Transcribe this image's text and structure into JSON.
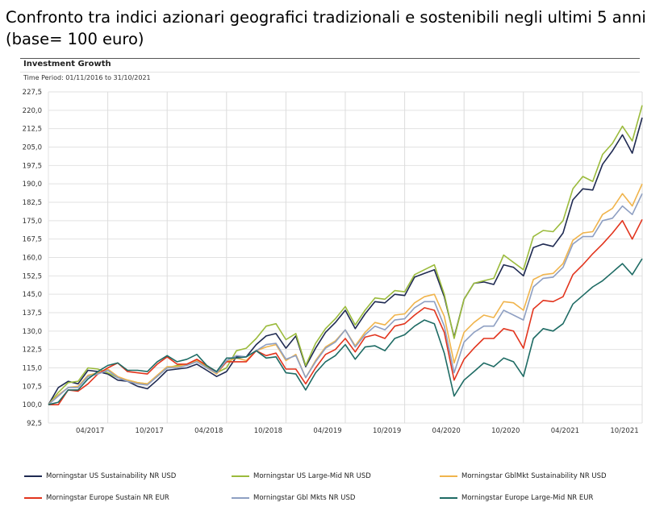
{
  "heading": "Confronto tra indici azionari geografici tradizionali e sostenibili negli ultimi 5 anni (base= 100 euro)",
  "chart_data": {
    "type": "line",
    "title": "Investment Growth",
    "subtitle": "Time Period: 01/11/2016 to 31/10/2021",
    "xlabel": "",
    "ylabel": "",
    "ylim": [
      92.5,
      227.5
    ],
    "y_ticks": [
      92.5,
      100,
      107.5,
      115,
      122.5,
      130,
      137.5,
      145,
      152.5,
      160,
      167.5,
      175,
      182.5,
      190,
      197.5,
      205,
      212.5,
      220,
      227.5
    ],
    "y_tick_labels": [
      "92,5",
      "100,0",
      "107,5",
      "115,0",
      "122,5",
      "130,0",
      "137,5",
      "145,0",
      "152,5",
      "160,0",
      "167,5",
      "175,0",
      "182,5",
      "190,0",
      "197,5",
      "205,0",
      "212,5",
      "220,0",
      "227,5"
    ],
    "x_start": "10/2016",
    "x_step": "monthly",
    "x_tick_index": [
      6,
      12,
      18,
      24,
      30,
      36,
      42,
      48,
      54,
      60
    ],
    "x_tick_labels": [
      "04/2017",
      "10/2017",
      "04/2018",
      "10/2018",
      "04/2019",
      "10/2019",
      "04/2020",
      "10/2020",
      "04/2021",
      "10/2021"
    ],
    "grid": true,
    "legend_position": "bottom",
    "series": [
      {
        "name": "Morningstar US Sustainability NR USD",
        "color": "#1f2a52",
        "values": [
          100,
          107,
          109.5,
          108.5,
          114,
          113.5,
          112.5,
          110,
          109.5,
          107.5,
          106.5,
          110,
          114,
          114.5,
          115,
          116.5,
          114,
          111.5,
          113.5,
          119.5,
          119.5,
          124.5,
          128,
          129,
          123,
          128,
          115.5,
          123,
          129.5,
          133.5,
          138.5,
          131,
          137,
          142,
          141.5,
          145,
          144.5,
          152,
          153.5,
          155,
          144,
          127.5,
          143,
          149.5,
          150,
          149,
          157,
          156,
          152.5,
          164,
          165.5,
          164.5,
          170,
          183.5,
          188,
          187.5,
          198,
          203.5,
          210,
          202.5,
          217
        ]
      },
      {
        "name": "Morningstar US Large-Mid NR USD",
        "color": "#9bbb3c",
        "values": [
          100,
          105,
          109,
          109.5,
          115,
          114.5,
          113,
          111,
          110,
          109,
          108.5,
          111.5,
          115,
          116,
          116.5,
          118,
          115.5,
          113,
          115,
          122,
          123,
          127,
          132,
          133,
          126.5,
          129,
          116,
          125,
          131,
          135,
          140,
          132.5,
          138.5,
          143.5,
          143,
          146.5,
          146,
          153,
          155,
          157,
          145,
          127,
          143,
          149.5,
          150.5,
          151.5,
          161,
          158,
          155,
          168.5,
          171,
          170.5,
          175,
          188,
          193,
          191,
          202,
          206.5,
          213.5,
          207.5,
          222
        ]
      },
      {
        "name": "Morningstar GblMkt Sustainability NR USD",
        "color": "#f0b44c",
        "values": [
          100,
          104,
          107,
          107.5,
          112,
          113,
          114.5,
          111.5,
          110,
          109,
          108.5,
          112,
          115.5,
          115.5,
          116.5,
          118,
          115,
          112.5,
          117.5,
          119,
          118,
          122,
          123.5,
          124.5,
          118,
          120.5,
          111,
          118,
          123.5,
          126,
          130.5,
          124,
          129.5,
          133.5,
          132.5,
          136.5,
          137,
          141.5,
          144,
          145,
          136,
          117,
          129.5,
          133.5,
          136.5,
          135.5,
          142,
          141.5,
          138.5,
          151,
          153,
          153.5,
          157.5,
          167,
          170,
          170.5,
          177.5,
          180,
          186,
          181,
          190
        ]
      },
      {
        "name": "Morningstar Europe Sustain NR EUR",
        "color": "#e2341d",
        "values": [
          100,
          100,
          106,
          105.5,
          108.5,
          112.5,
          115,
          117,
          113.5,
          113,
          112.5,
          116.5,
          119.5,
          116.5,
          116.5,
          118.5,
          116,
          113,
          117.5,
          117.5,
          117.5,
          122,
          120,
          121,
          114.5,
          114.5,
          108.5,
          115,
          120.5,
          122.5,
          127,
          121.5,
          127.5,
          128.5,
          127,
          132,
          133,
          136.5,
          139.5,
          138.5,
          129.5,
          110,
          118.5,
          123,
          127,
          127,
          131,
          130,
          123,
          139,
          142.5,
          142,
          144,
          153,
          157,
          161.5,
          165.5,
          170,
          175,
          167.5,
          175.5
        ]
      },
      {
        "name": "Morningstar Gbl Mkts NR USD",
        "color": "#8e9fc2",
        "values": [
          100,
          103.5,
          107,
          107,
          111.5,
          112.5,
          114,
          111,
          109.5,
          108.5,
          108,
          111.5,
          115,
          115,
          116,
          117.5,
          115,
          113,
          118,
          120,
          119.5,
          122,
          124.5,
          125,
          118.5,
          120,
          111,
          117.5,
          123,
          125.5,
          130.5,
          123.5,
          128.5,
          132,
          130.5,
          134.5,
          135,
          139.5,
          142,
          142,
          132,
          113,
          125.5,
          129.5,
          132,
          132,
          138.5,
          136.5,
          134.5,
          148,
          151.5,
          152,
          156,
          165.5,
          168.5,
          168.5,
          175,
          176,
          181,
          177.5,
          186
        ]
      },
      {
        "name": "Morningstar Europe Large-Mid NR EUR",
        "color": "#1e6b64",
        "values": [
          100,
          101,
          106,
          106,
          110.5,
          113.5,
          116,
          117,
          114,
          114,
          113.5,
          117.5,
          120,
          117.5,
          118.5,
          120.5,
          116,
          113.5,
          119,
          119,
          119.5,
          122,
          119,
          119.5,
          113,
          112.5,
          106,
          113,
          117.5,
          120,
          124.5,
          118.5,
          123.5,
          124,
          122,
          127,
          128.5,
          132,
          134.5,
          133,
          121,
          103.5,
          110,
          113.5,
          117,
          115.5,
          119,
          117.5,
          111.5,
          127,
          131,
          130,
          133,
          141,
          144.5,
          148,
          150.5,
          154,
          157.5,
          153,
          159.5
        ]
      }
    ]
  }
}
